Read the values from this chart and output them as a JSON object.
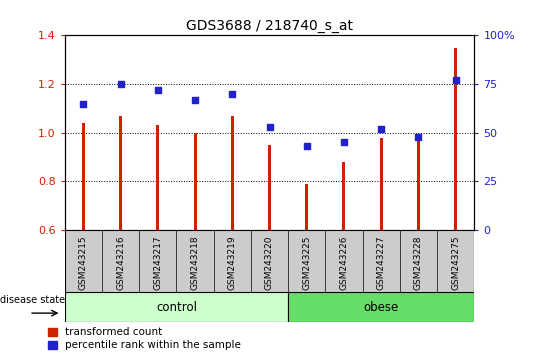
{
  "title": "GDS3688 / 218740_s_at",
  "samples": [
    "GSM243215",
    "GSM243216",
    "GSM243217",
    "GSM243218",
    "GSM243219",
    "GSM243220",
    "GSM243225",
    "GSM243226",
    "GSM243227",
    "GSM243228",
    "GSM243275"
  ],
  "bar_values": [
    1.04,
    1.07,
    1.03,
    1.0,
    1.07,
    0.95,
    0.79,
    0.88,
    0.98,
    0.97,
    1.35
  ],
  "percentile_values": [
    65,
    75,
    72,
    67,
    70,
    53,
    43,
    45,
    52,
    48,
    77
  ],
  "bar_color": "#CC2200",
  "scatter_color": "#2222CC",
  "ylim_left": [
    0.6,
    1.4
  ],
  "ylim_right": [
    0,
    100
  ],
  "yticks_left": [
    0.6,
    0.8,
    1.0,
    1.2,
    1.4
  ],
  "yticks_right": [
    0,
    25,
    50,
    75,
    100
  ],
  "ytick_labels_right": [
    "0",
    "25",
    "50",
    "75",
    "100%"
  ],
  "n_control": 6,
  "n_obese": 5,
  "control_label": "control",
  "obese_label": "obese",
  "disease_state_label": "disease state",
  "legend_bar_label": "transformed count",
  "legend_scatter_label": "percentile rank within the sample",
  "control_color": "#CCFFCC",
  "obese_color": "#66DD66",
  "xticklabel_area_color": "#CCCCCC",
  "bar_width": 0.08
}
